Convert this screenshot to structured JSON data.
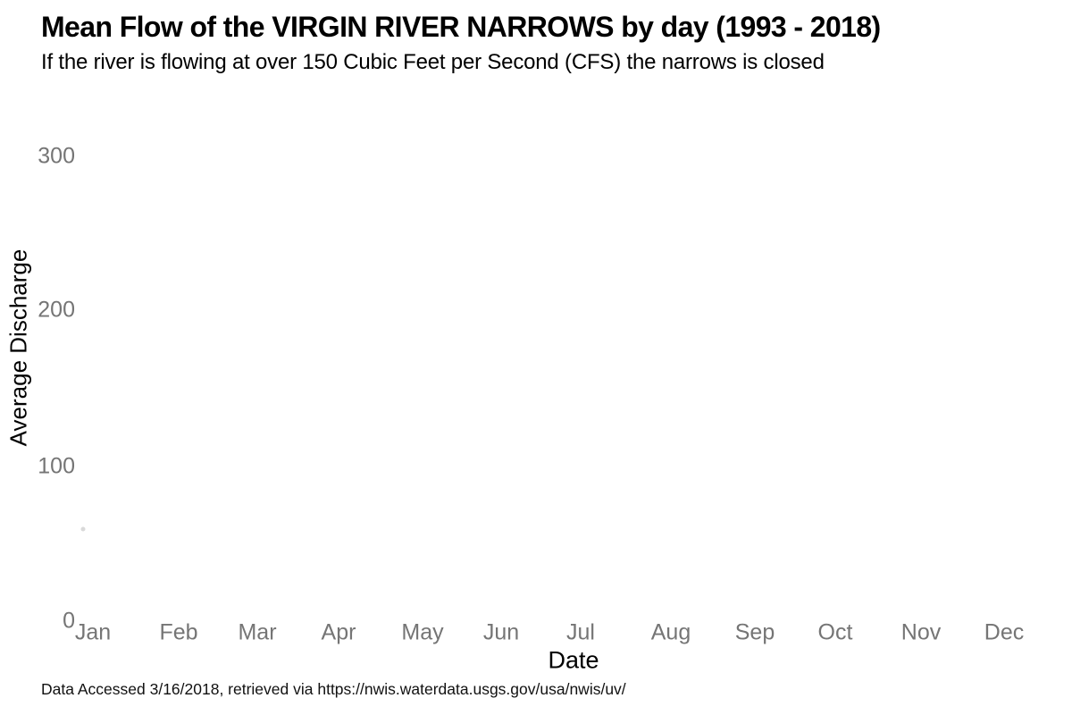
{
  "chart_data": {
    "type": "scatter",
    "title": "Mean Flow of the VIRGIN RIVER NARROWS by day (1993 - 2018)",
    "subtitle": "If the river is flowing at over 150 Cubic Feet per Second (CFS) the narrows is closed",
    "xlabel": "Date",
    "ylabel": "Average Discharge",
    "caption": "Data Accessed 3/16/2018, retrieved via https://nwis.waterdata.usgs.gov/usa/nwis/uv/",
    "x_ticks": [
      "Jan",
      "Feb",
      "Mar",
      "Apr",
      "May",
      "Jun",
      "Jul",
      "Aug",
      "Sep",
      "Oct",
      "Nov",
      "Dec"
    ],
    "y_ticks_top_to_bottom": [
      "300",
      "200",
      "100",
      "0"
    ],
    "y_ticks": [
      0,
      100,
      200,
      300
    ],
    "ylim": [
      0,
      335
    ],
    "grid": false,
    "legend": false,
    "axis_lines": false,
    "tick_label_color": "#757575",
    "text_color": "#000000",
    "background_color": "#ffffff",
    "point_color": "#d9d9d9",
    "points": [
      {
        "x": "early January",
        "y": 59,
        "note": "single very faint light-gray dot just left of the Jan tick; the rest of the plot area is empty"
      }
    ]
  }
}
